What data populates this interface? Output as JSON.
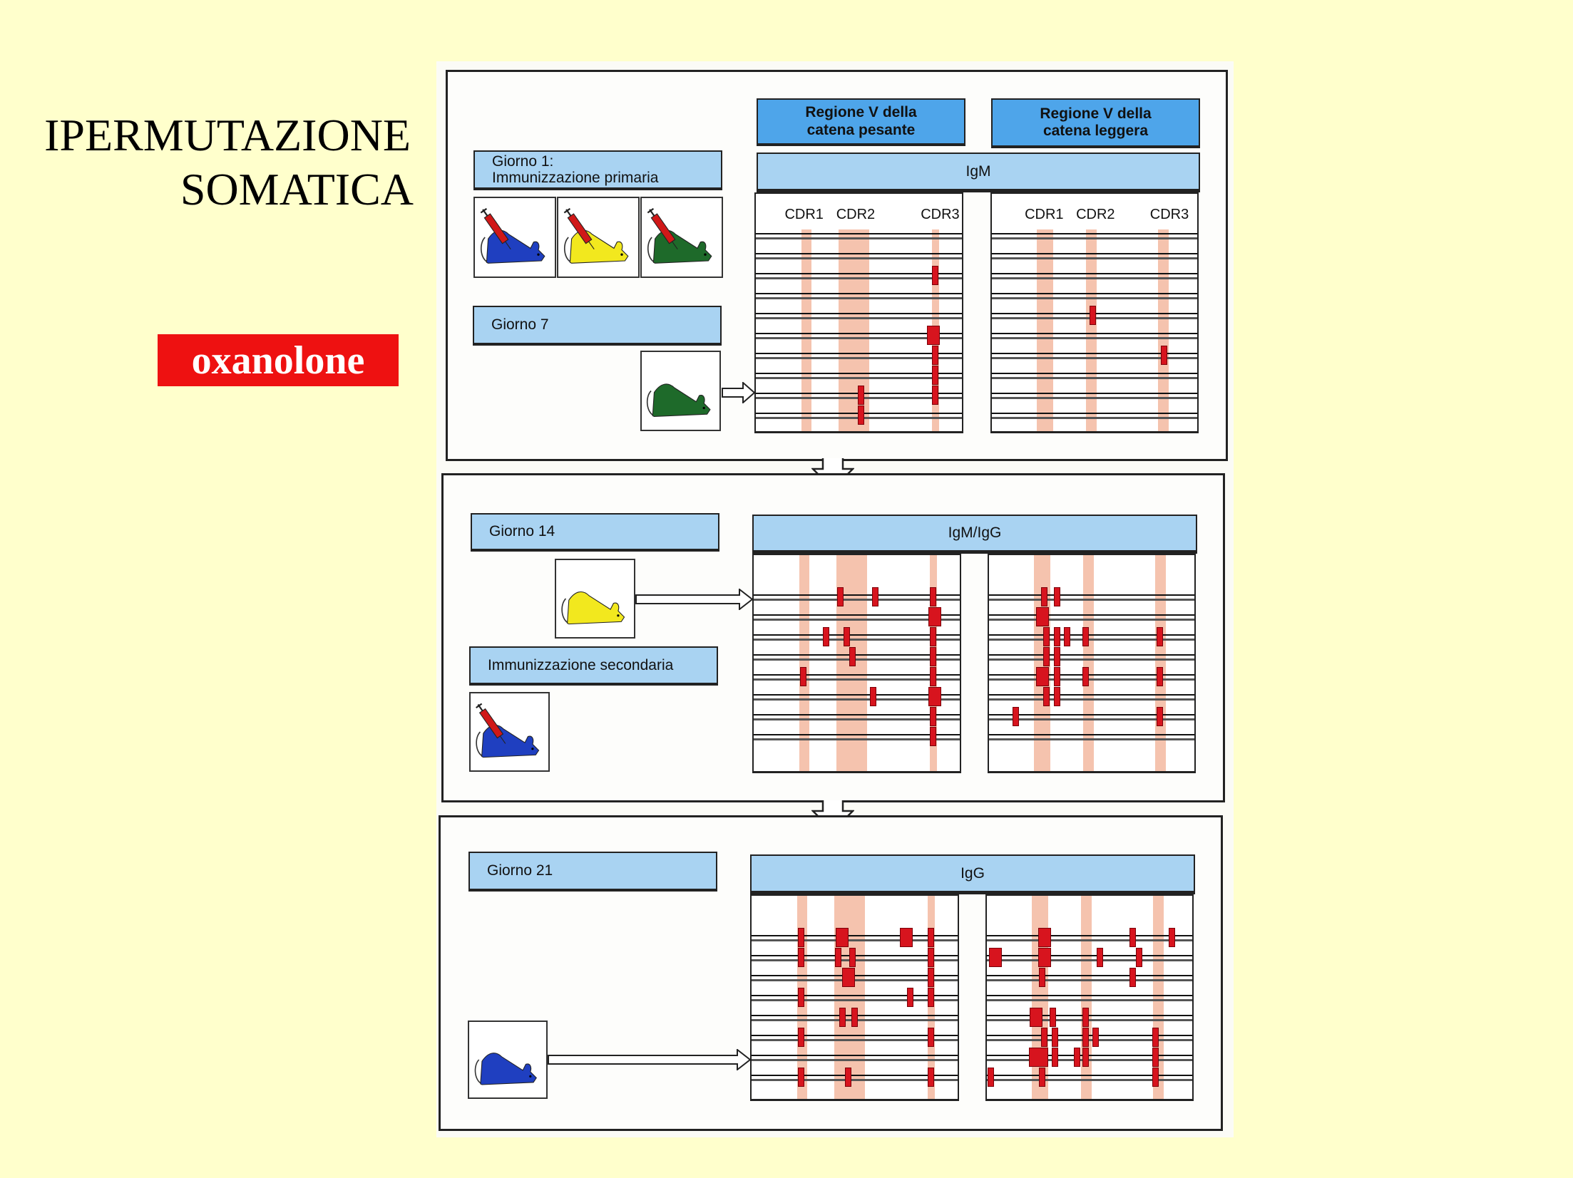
{
  "slide": {
    "title_line1": "IPERMUTAZIONE",
    "title_line2": "SOMATICA",
    "tag": "oxanolone",
    "background_color": "#ffffcc",
    "tag_color": "#ee1111"
  },
  "figure": {
    "heavy_header": "Regione V della catena pesante",
    "light_header": "Regione V della catena leggera",
    "cdr_labels": {
      "cdr1": "CDR1",
      "cdr2": "CDR2",
      "cdr3": "CDR3"
    },
    "mutation_color": "#d7141e",
    "cdr_band_color": "#f3b9a0",
    "panels": [
      {
        "labels": [
          "Giorno 1: Immunizzazione primaria",
          "Giorno 7"
        ],
        "label1_line1": "Giorno 1:",
        "label1_line2": "Immunizzazione primaria",
        "label2": "Giorno 7",
        "isotype": "IgM",
        "mice": [
          "blue-mouse-syringe",
          "yellow-mouse-syringe",
          "green-mouse-syringe",
          "green-mouse"
        ]
      },
      {
        "label1": "Giorno 14",
        "label2": "Immunizzazione secondaria",
        "isotype": "IgM/IgG",
        "mice": [
          "yellow-mouse",
          "blue-mouse-syringe"
        ]
      },
      {
        "label1": "Giorno 21",
        "isotype": "IgG",
        "mice": [
          "blue-mouse"
        ]
      }
    ]
  }
}
